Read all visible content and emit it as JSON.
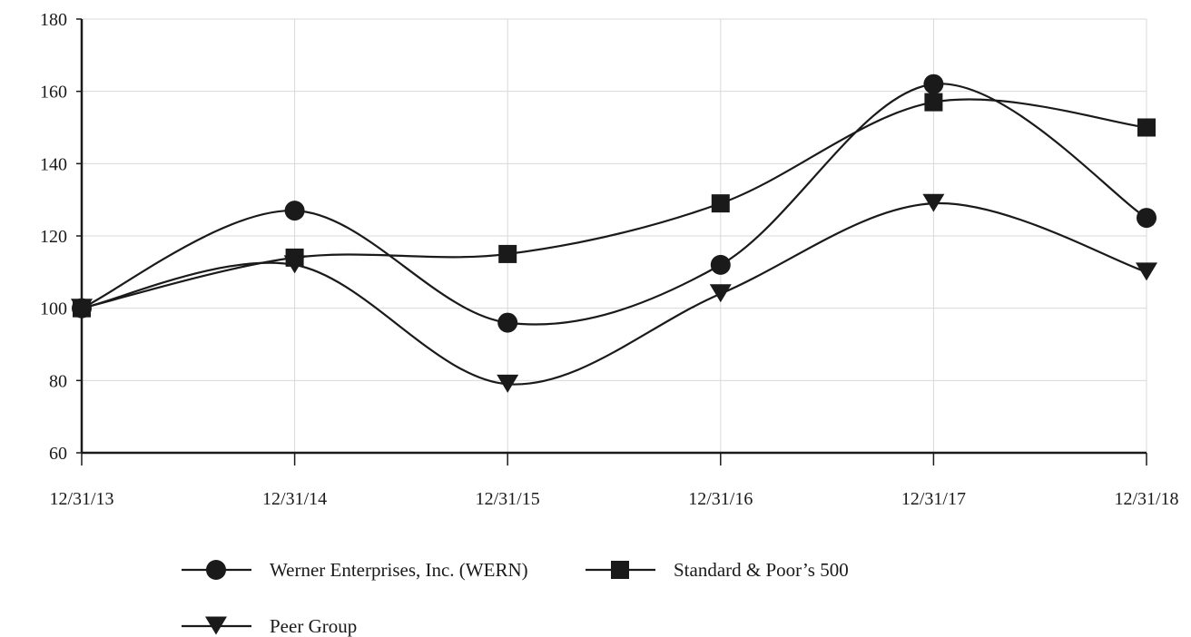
{
  "chart_data": {
    "type": "line",
    "title": "",
    "xlabel": "",
    "ylabel": "",
    "x": [
      "12/31/13",
      "12/31/14",
      "12/31/15",
      "12/31/16",
      "12/31/17",
      "12/31/18"
    ],
    "ylim": [
      60,
      180
    ],
    "yticks": [
      60,
      80,
      100,
      120,
      140,
      160,
      180
    ],
    "grid": true,
    "legend_position": "bottom",
    "smooth": true,
    "series": [
      {
        "name": "Werner Enterprises, Inc. (WERN)",
        "marker": "circle",
        "values": [
          100,
          127,
          96,
          112,
          162,
          125
        ],
        "color": "#1a1a1a"
      },
      {
        "name": "Standard & Poor’s 500",
        "marker": "square",
        "values": [
          100,
          114,
          115,
          129,
          157,
          150
        ],
        "color": "#1a1a1a"
      },
      {
        "name": "Peer Group",
        "marker": "triangle-down",
        "values": [
          100,
          112,
          79,
          104,
          129,
          110
        ],
        "color": "#1a1a1a"
      }
    ]
  }
}
